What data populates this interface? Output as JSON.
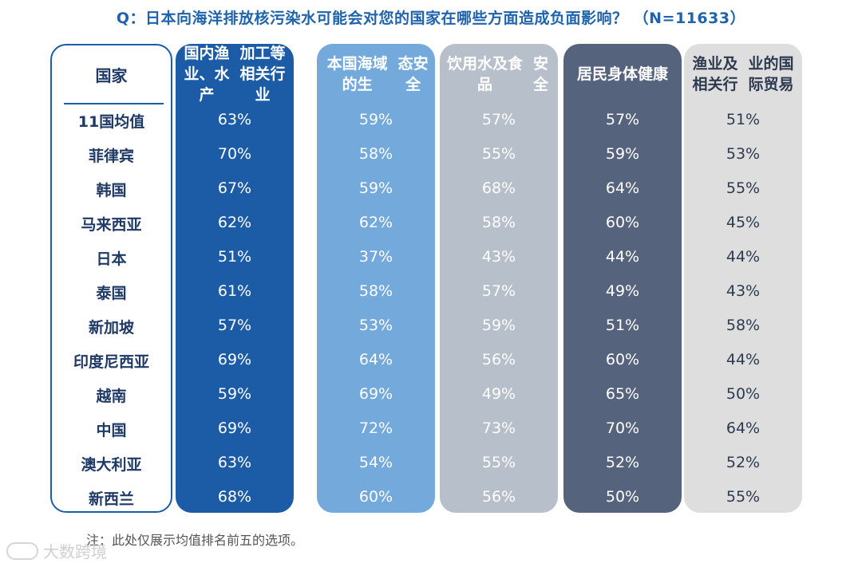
{
  "title": "Q：日本向海洋排放核污染水可能会对您的国家在哪些方面造成负面影响？  （N=11633）",
  "note": "注：此处仅展示均值排名前五的选项。",
  "watermark": "大数跨境",
  "colors": {
    "col1": "#1c5ca6",
    "col2": "#74a9dc",
    "col3": "#b7bfca",
    "col4": "#56637d",
    "col5": "#dedede",
    "title": "#1f63ad",
    "country_text": "#1f3a66"
  },
  "chart_data": {
    "type": "table",
    "row_header": "国家",
    "columns": [
      "国内渔业、水产加工等相关行业",
      "本国海域的生态安全",
      "饮用水及食品安全",
      "居民身体健康",
      "渔业及相关行业的国际贸易"
    ],
    "column_header_lines": [
      [
        "国内渔业、水产",
        "加工等相关行业"
      ],
      [
        "本国海域的生",
        "态安全"
      ],
      [
        "饮用水及食品",
        "安全"
      ],
      [
        "居民身体健康"
      ],
      [
        "渔业及相关行",
        "业的国际贸易"
      ]
    ],
    "rows": [
      {
        "country": "11国均值",
        "values": [
          "63%",
          "59%",
          "57%",
          "57%",
          "51%"
        ]
      },
      {
        "country": "菲律宾",
        "values": [
          "70%",
          "58%",
          "55%",
          "59%",
          "53%"
        ]
      },
      {
        "country": "韩国",
        "values": [
          "67%",
          "59%",
          "68%",
          "64%",
          "55%"
        ]
      },
      {
        "country": "马来西亚",
        "values": [
          "62%",
          "62%",
          "58%",
          "60%",
          "45%"
        ]
      },
      {
        "country": "日本",
        "values": [
          "51%",
          "37%",
          "43%",
          "44%",
          "44%"
        ]
      },
      {
        "country": "泰国",
        "values": [
          "61%",
          "58%",
          "57%",
          "49%",
          "43%"
        ]
      },
      {
        "country": "新加坡",
        "values": [
          "57%",
          "53%",
          "59%",
          "51%",
          "58%"
        ]
      },
      {
        "country": "印度尼西亚",
        "values": [
          "69%",
          "64%",
          "56%",
          "60%",
          "44%"
        ]
      },
      {
        "country": "越南",
        "values": [
          "59%",
          "69%",
          "49%",
          "65%",
          "50%"
        ]
      },
      {
        "country": "中国",
        "values": [
          "69%",
          "72%",
          "73%",
          "70%",
          "64%"
        ]
      },
      {
        "country": "澳大利亚",
        "values": [
          "63%",
          "54%",
          "55%",
          "52%",
          "52%"
        ]
      },
      {
        "country": "新西兰",
        "values": [
          "68%",
          "60%",
          "56%",
          "50%",
          "55%"
        ]
      }
    ]
  }
}
